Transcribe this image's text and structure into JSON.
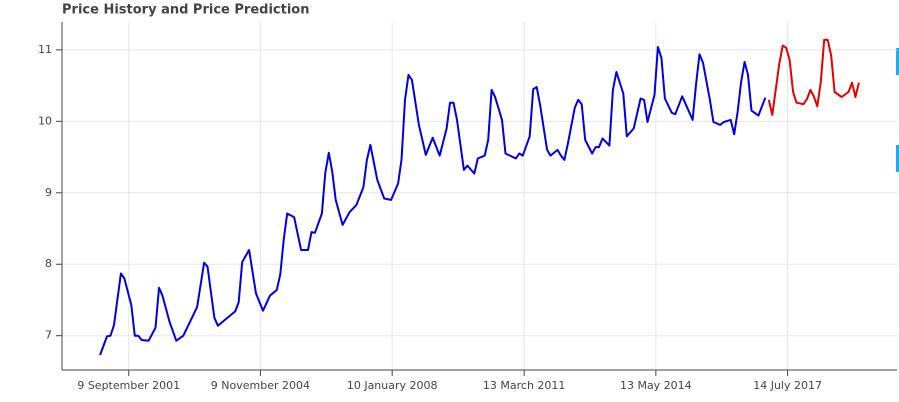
{
  "chart_data": {
    "type": "line",
    "title": "Price History and Price Prediction",
    "xlim": [
      "2000-02",
      "2020-03"
    ],
    "ylim": [
      6.52,
      11.39
    ],
    "yticks": [
      7,
      8,
      9,
      10,
      11
    ],
    "xticks": [
      {
        "value": "2001-09-09",
        "label": "9 September 2001"
      },
      {
        "value": "2004-11-09",
        "label": "9 November 2004"
      },
      {
        "value": "2008-01-10",
        "label": "10 January 2008"
      },
      {
        "value": "2011-03-13",
        "label": "13 March 2011"
      },
      {
        "value": "2014-05-13",
        "label": "13 May 2014"
      },
      {
        "value": "2017-07-14",
        "label": "14 July 2017"
      }
    ],
    "grid": true,
    "series": [
      {
        "color": "#0000e6",
        "x": [
          "2001-01",
          "2001-03",
          "2001-04",
          "2001-05",
          "2001-07",
          "2001-08",
          "2001-10",
          "2001-11",
          "2001-12",
          "2002-01",
          "2002-03",
          "2002-05",
          "2002-06",
          "2002-07",
          "2002-09",
          "2002-11",
          "2003-01",
          "2003-03",
          "2003-05",
          "2003-07",
          "2003-08",
          "2003-09",
          "2003-10",
          "2003-11",
          "2004-01",
          "2004-04",
          "2004-05",
          "2004-06",
          "2004-08",
          "2004-10",
          "2004-12",
          "2005-02",
          "2005-04",
          "2005-05",
          "2005-06",
          "2005-07",
          "2005-09",
          "2005-11",
          "2006-01",
          "2006-02",
          "2006-03",
          "2006-05",
          "2006-06",
          "2006-07",
          "2006-08",
          "2006-09",
          "2006-11",
          "2007-01",
          "2007-03",
          "2007-05",
          "2007-06",
          "2007-07",
          "2007-09",
          "2007-11",
          "2008-01",
          "2008-03",
          "2008-04",
          "2008-05",
          "2008-06",
          "2008-07",
          "2008-09",
          "2008-11",
          "2009-01",
          "2009-03",
          "2009-05",
          "2009-06",
          "2009-07",
          "2009-08",
          "2009-10",
          "2009-11",
          "2010-01",
          "2010-02",
          "2010-04",
          "2010-05",
          "2010-06",
          "2010-07",
          "2010-09",
          "2010-10",
          "2011-01",
          "2011-02",
          "2011-03",
          "2011-05",
          "2011-06",
          "2011-07",
          "2011-08",
          "2011-10",
          "2011-11",
          "2012-01",
          "2012-02",
          "2012-03",
          "2012-04",
          "2012-06",
          "2012-07",
          "2012-08",
          "2012-09",
          "2012-11",
          "2012-12",
          "2013-01",
          "2013-02",
          "2013-04",
          "2013-05",
          "2013-06",
          "2013-08",
          "2013-09",
          "2013-11",
          "2014-01",
          "2014-02",
          "2014-03",
          "2014-05",
          "2014-06",
          "2014-07",
          "2014-08",
          "2014-10",
          "2014-11",
          "2015-01",
          "2015-02",
          "2015-04",
          "2015-05",
          "2015-06",
          "2015-07",
          "2015-09",
          "2015-10",
          "2015-12",
          "2016-01",
          "2016-03",
          "2016-04",
          "2016-05",
          "2016-06",
          "2016-07",
          "2016-08",
          "2016-09",
          "2016-11",
          "2017-01"
        ],
        "values": [
          6.73,
          6.99,
          7.0,
          7.15,
          7.87,
          7.8,
          7.43,
          7.0,
          7.0,
          6.94,
          6.93,
          7.11,
          7.67,
          7.56,
          7.2,
          6.93,
          7.0,
          7.2,
          7.4,
          8.02,
          7.97,
          7.6,
          7.25,
          7.14,
          7.22,
          7.34,
          7.47,
          8.03,
          8.2,
          7.59,
          7.35,
          7.56,
          7.64,
          7.86,
          8.34,
          8.71,
          8.66,
          8.2,
          8.2,
          8.45,
          8.44,
          8.71,
          9.28,
          9.56,
          9.3,
          8.9,
          8.55,
          8.73,
          8.83,
          9.08,
          9.46,
          9.67,
          9.18,
          8.92,
          8.9,
          9.13,
          9.46,
          10.3,
          10.65,
          10.58,
          9.95,
          9.53,
          9.77,
          9.52,
          9.9,
          10.26,
          10.26,
          10.02,
          9.32,
          9.38,
          9.27,
          9.48,
          9.52,
          9.74,
          10.44,
          10.34,
          10.02,
          9.55,
          9.48,
          9.55,
          9.52,
          9.79,
          10.45,
          10.48,
          10.23,
          9.6,
          9.52,
          9.6,
          9.52,
          9.46,
          9.69,
          10.19,
          10.3,
          10.24,
          9.74,
          9.55,
          9.64,
          9.64,
          9.76,
          9.66,
          10.44,
          10.69,
          10.39,
          9.79,
          9.9,
          10.32,
          10.3,
          9.99,
          10.37,
          11.04,
          10.89,
          10.32,
          10.12,
          10.1,
          10.35,
          10.24,
          10.02,
          10.51,
          10.94,
          10.82,
          10.3,
          9.99,
          9.95,
          9.99,
          10.02,
          9.82,
          10.13,
          10.55,
          10.83,
          10.65,
          10.15,
          10.08,
          10.33
        ]
      },
      {
        "color": "#e60000",
        "x": [
          "2017-02",
          "2017-03",
          "2017-05",
          "2017-06",
          "2017-07",
          "2017-08",
          "2017-09",
          "2017-10",
          "2017-12",
          "2018-01",
          "2018-02",
          "2018-03",
          "2018-04",
          "2018-05",
          "2018-06",
          "2018-07",
          "2018-08",
          "2018-09",
          "2018-11",
          "2019-01",
          "2019-02",
          "2019-03",
          "2019-04"
        ],
        "values": [
          10.3,
          10.09,
          10.8,
          11.06,
          11.03,
          10.86,
          10.41,
          10.26,
          10.24,
          10.31,
          10.44,
          10.35,
          10.21,
          10.55,
          11.14,
          11.14,
          10.92,
          10.41,
          10.34,
          10.41,
          10.54,
          10.34,
          10.54
        ]
      }
    ]
  }
}
